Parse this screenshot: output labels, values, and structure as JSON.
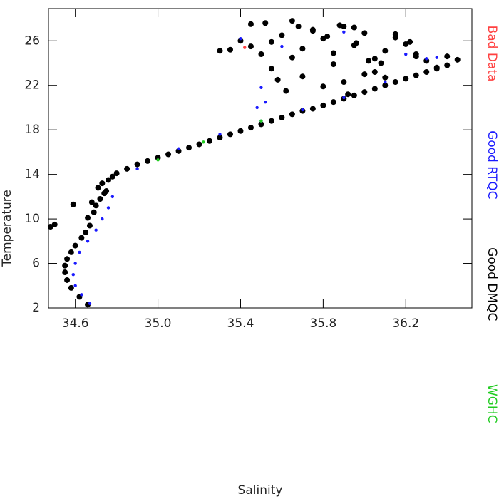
{
  "chart_data": {
    "type": "scatter",
    "x_label": "Salinity",
    "y_label": "Temperature",
    "xlim": [
      34.47,
      36.52
    ],
    "ylim": [
      2,
      28.9
    ],
    "xticks": [
      {
        "value": 34.6,
        "label": "34.6"
      },
      {
        "value": 35.0,
        "label": "35.0"
      },
      {
        "value": 35.4,
        "label": "35.4"
      },
      {
        "value": 35.8,
        "label": "35.8"
      },
      {
        "value": 36.2,
        "label": "36.2"
      }
    ],
    "yticks": [
      2,
      6,
      10,
      14,
      18,
      22,
      26
    ],
    "grid": false,
    "legend": "right",
    "series": [
      {
        "name": "Bad Data",
        "color": "#ff4040",
        "x": [
          35.42
        ],
        "y": [
          25.4
        ]
      },
      {
        "name": "Good RTQC",
        "color": "#1a1aff",
        "x": [
          34.67,
          34.63,
          34.6,
          34.59,
          34.6,
          34.62,
          34.66,
          34.7,
          34.73,
          34.76,
          34.78,
          34.9,
          35.1,
          35.3,
          35.5,
          35.7,
          35.9,
          36.1,
          35.5,
          35.52,
          35.48,
          36.2,
          36.3,
          36.35,
          35.9,
          35.4,
          35.6
        ],
        "y": [
          2.4,
          3.2,
          4,
          5,
          6,
          7,
          8,
          9,
          10,
          11,
          12,
          14.5,
          16.3,
          17.6,
          18.8,
          19.8,
          20.9,
          22.3,
          21.8,
          20.5,
          20,
          24.8,
          24.4,
          24.5,
          26.8,
          26.2,
          25.5
        ]
      },
      {
        "name": "Good DMQC",
        "color": "#000000",
        "x": [
          34.66,
          34.62,
          34.58,
          34.56,
          34.55,
          34.55,
          34.56,
          34.58,
          34.6,
          34.63,
          34.65,
          34.67,
          34.66,
          34.69,
          34.7,
          34.72,
          34.74,
          34.71,
          34.68,
          34.73,
          34.76,
          34.78,
          34.75,
          34.8,
          34.85,
          34.9,
          34.95,
          35.0,
          35.05,
          35.1,
          35.15,
          35.2,
          35.25,
          35.3,
          35.35,
          35.4,
          35.45,
          35.5,
          35.55,
          35.6,
          35.65,
          35.7,
          35.75,
          35.8,
          35.85,
          35.9,
          35.95,
          36.0,
          36.05,
          36.1,
          36.15,
          36.2,
          36.25,
          36.3,
          36.35,
          36.4,
          36.45,
          34.5,
          34.48,
          34.59,
          35.35,
          35.4,
          35.45,
          35.5,
          35.55,
          35.6,
          35.65,
          35.7,
          35.75,
          35.8,
          35.85,
          35.9,
          35.95,
          36.0,
          36.05,
          36.1,
          36.15,
          36.2,
          36.25,
          36.3,
          36.35,
          35.3,
          35.45,
          35.55,
          35.65,
          35.75,
          35.85,
          35.95,
          36.05,
          36.15,
          36.25,
          35.58,
          35.62,
          35.7,
          35.8,
          35.9,
          36.0,
          36.1,
          35.52,
          35.68,
          35.82,
          35.96,
          36.08,
          36.22,
          36.4,
          36.02,
          35.92,
          35.88
        ],
        "y": [
          2.3,
          3,
          3.8,
          4.5,
          5.2,
          5.8,
          6.4,
          7,
          7.6,
          8.3,
          8.8,
          9.4,
          10.1,
          10.6,
          11.2,
          11.8,
          12.3,
          12.8,
          11.5,
          13.2,
          13.5,
          13.8,
          12.5,
          14.1,
          14.5,
          14.9,
          15.2,
          15.5,
          15.8,
          16.1,
          16.4,
          16.7,
          17,
          17.3,
          17.6,
          17.9,
          18.2,
          18.5,
          18.8,
          19.1,
          19.4,
          19.7,
          19.9,
          20.2,
          20.5,
          20.8,
          21.1,
          21.4,
          21.7,
          22,
          22.3,
          22.6,
          22.9,
          23.2,
          23.5,
          23.8,
          24.3,
          9.5,
          9.3,
          11.3,
          25.2,
          26,
          25.5,
          24.8,
          25.9,
          26.5,
          24.5,
          25.3,
          27,
          26.2,
          24.9,
          27.3,
          25.6,
          26.7,
          24.4,
          25.1,
          26.3,
          25.7,
          24.8,
          24.2,
          23.6,
          25.1,
          27.5,
          23.5,
          27.8,
          26.9,
          23.9,
          27.2,
          23.2,
          26.6,
          24.6,
          22.5,
          21.5,
          22.8,
          21.9,
          22.3,
          23,
          22.7,
          27.6,
          27.3,
          26.4,
          25.8,
          24,
          25.9,
          24.6,
          24.2,
          21.2,
          27.4
        ]
      },
      {
        "name": "WGHC",
        "color": "#22cc22",
        "x": [
          35.22,
          35.0,
          35.5
        ],
        "y": [
          16.9,
          15.3,
          18.8
        ]
      }
    ]
  }
}
